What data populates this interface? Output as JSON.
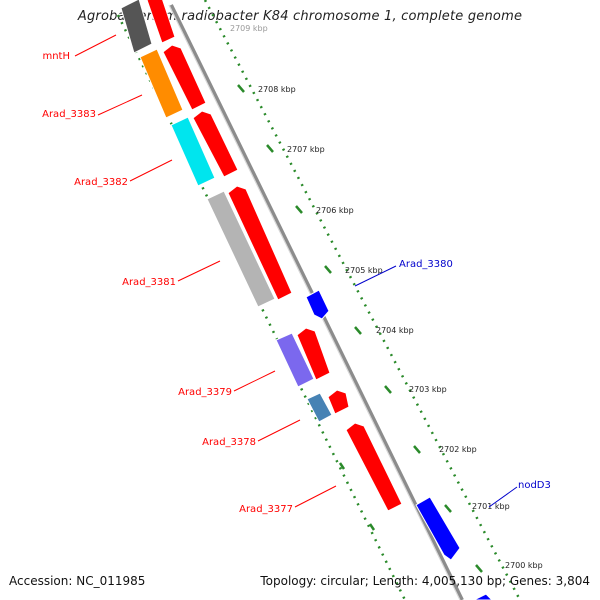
{
  "title": "Agrobacterium radiobacter K84 chromosome 1, complete genome",
  "accession": "Accession: NC_011985",
  "summary": "Topology: circular; Length: 4,005,130 bp; Genes: 3,804",
  "colors": {
    "backbone": "#8c8c8c",
    "forward_gene": "#ff0000",
    "reverse_gene": "#0000ff",
    "ruler": "#2a8a2a",
    "label_forward": "#ff0000",
    "label_reverse": "#0000cc"
  },
  "ruler_ticks": [
    {
      "label": "2709 kbp"
    },
    {
      "label": "2708 kbp"
    },
    {
      "label": "2707 kbp"
    },
    {
      "label": "2706 kbp"
    },
    {
      "label": "2705 kbp"
    },
    {
      "label": "2704 kbp"
    },
    {
      "label": "2703 kbp"
    },
    {
      "label": "2702 kbp"
    },
    {
      "label": "2701 kbp"
    },
    {
      "label": "2700 kbp"
    }
  ],
  "gene_labels": [
    {
      "name": "mntH",
      "strand": "forward"
    },
    {
      "name": "Arad_3383",
      "strand": "forward"
    },
    {
      "name": "Arad_3382",
      "strand": "forward"
    },
    {
      "name": "Arad_3381",
      "strand": "forward"
    },
    {
      "name": "Arad_3380",
      "strand": "reverse"
    },
    {
      "name": "Arad_3379",
      "strand": "forward"
    },
    {
      "name": "Arad_3378",
      "strand": "forward"
    },
    {
      "name": "Arad_3377",
      "strand": "forward"
    },
    {
      "name": "nodD3",
      "strand": "reverse"
    }
  ],
  "cog_blocks": [
    {
      "color": "#555555"
    },
    {
      "color": "#ff8c00"
    },
    {
      "color": "#00e5ee"
    },
    {
      "color": "#b4b4b4"
    },
    {
      "color": "#7b68ee"
    },
    {
      "color": "#4682b4"
    }
  ]
}
